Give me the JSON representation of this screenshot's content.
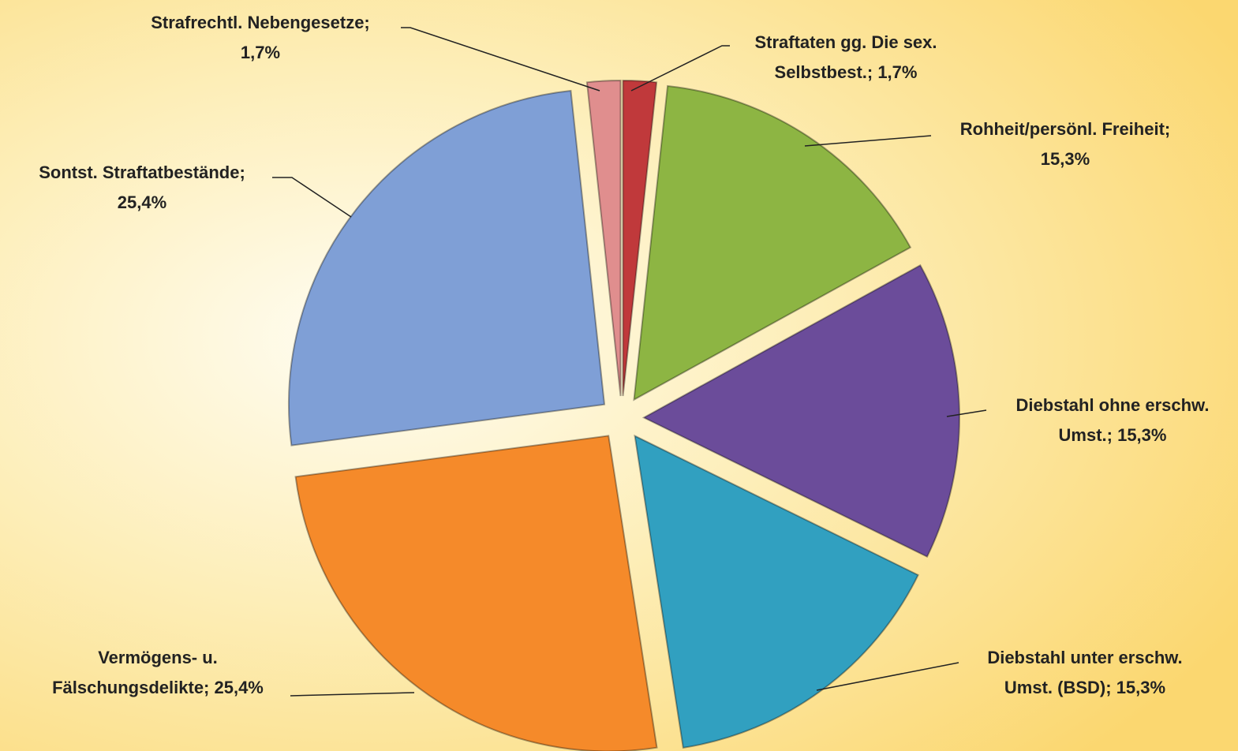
{
  "chart_data": {
    "type": "pie",
    "labels": [
      [
        "Straftaten gg. Die sex.",
        "Selbstbest.; 1,7%"
      ],
      [
        "Rohheit/persönl. Freiheit;",
        "15,3%"
      ],
      [
        "Diebstahl ohne erschw.",
        "Umst.; 15,3%"
      ],
      [
        "Diebstahl unter erschw.",
        "Umst. (BSD); 15,3%"
      ],
      [
        "Vermögens- u.",
        "Fälschungsdelikte; 25,4%"
      ],
      [
        "Sontst. Straftatbestände;",
        "25,4%"
      ],
      [
        "Strafrechtl. Nebengesetze;",
        "1,7%"
      ]
    ],
    "values": [
      1.7,
      15.3,
      15.3,
      15.3,
      25.4,
      25.4,
      1.7
    ],
    "colors": [
      "#c0393b",
      "#8db543",
      "#6b4c9a",
      "#31a0c0",
      "#f58a2a",
      "#7f9fd6",
      "#e08e8e"
    ]
  }
}
